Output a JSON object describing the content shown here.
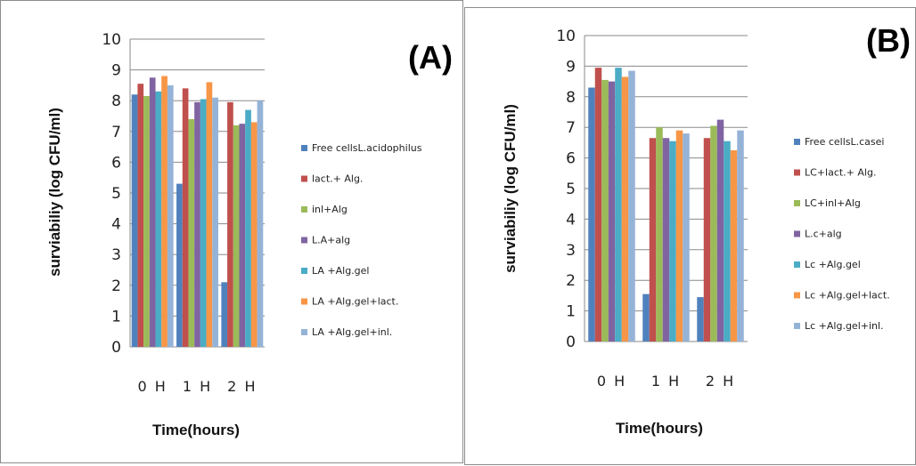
{
  "colors": [
    "#4f81bd",
    "#c0504d",
    "#9bbb59",
    "#8064a2",
    "#4bacc6",
    "#f79646",
    "#95b3d7"
  ],
  "chart_data": [
    {
      "type": "bar",
      "panel_letter": "(A)",
      "xlabel": "Time(hours)",
      "ylabel": "surviabiliy (log  CFU/ml)",
      "ylim": [
        0,
        10
      ],
      "yticks": [
        "0",
        "1",
        "2",
        "3",
        "4",
        "5",
        "6",
        "7",
        "8",
        "9",
        "10"
      ],
      "categories": [
        "0H",
        "1H",
        "2H"
      ],
      "category_labels": [
        "0 H",
        "1 H",
        "2 H"
      ],
      "grid": true,
      "legend_position": "right",
      "series": [
        {
          "name": "Free cellsL.acidophilus",
          "values": [
            8.2,
            5.3,
            2.1
          ]
        },
        {
          "name": "lact.+ Alg.",
          "values": [
            8.55,
            8.4,
            7.95
          ]
        },
        {
          "name": "inl+Alg",
          "values": [
            8.15,
            7.4,
            7.2
          ]
        },
        {
          "name": "L.A+alg",
          "values": [
            8.75,
            7.95,
            7.25
          ]
        },
        {
          "name": "LA +Alg.gel",
          "values": [
            8.3,
            8.05,
            7.7
          ]
        },
        {
          "name": "LA +Alg.gel+lact.",
          "values": [
            8.8,
            8.6,
            7.3
          ]
        },
        {
          "name": "LA +Alg.gel+inl.",
          "values": [
            8.5,
            8.1,
            8.0
          ]
        }
      ]
    },
    {
      "type": "bar",
      "panel_letter": "(B)",
      "xlabel": "Time(hours)",
      "ylabel": "surviabiliy (log  CFU/ml)",
      "ylim": [
        0,
        10
      ],
      "yticks": [
        "0",
        "1",
        "2",
        "3",
        "4",
        "5",
        "6",
        "7",
        "8",
        "9",
        "10"
      ],
      "categories": [
        "0H",
        "1H",
        "2H"
      ],
      "category_labels": [
        "0 H",
        "1 H",
        "2 H"
      ],
      "grid": true,
      "legend_position": "right",
      "series": [
        {
          "name": "Free cellsL.casei",
          "values": [
            8.3,
            1.55,
            1.45
          ]
        },
        {
          "name": "LC+lact.+ Alg.",
          "values": [
            8.95,
            6.65,
            6.65
          ]
        },
        {
          "name": "LC+inl+Alg",
          "values": [
            8.55,
            7.0,
            7.05
          ]
        },
        {
          "name": "L.c+alg",
          "values": [
            8.5,
            6.65,
            7.25
          ]
        },
        {
          "name": "Lc +Alg.gel",
          "values": [
            8.95,
            6.55,
            6.55
          ]
        },
        {
          "name": "Lc +Alg.gel+lact.",
          "values": [
            8.65,
            6.9,
            6.25
          ]
        },
        {
          "name": "Lc +Alg.gel+inl.",
          "values": [
            8.85,
            6.8,
            6.9
          ]
        }
      ]
    }
  ]
}
